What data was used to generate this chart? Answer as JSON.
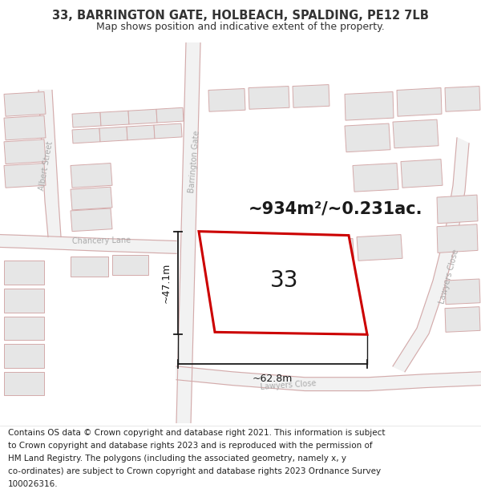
{
  "title_line1": "33, BARRINGTON GATE, HOLBEACH, SPALDING, PE12 7LB",
  "title_line2": "Map shows position and indicative extent of the property.",
  "footer_lines": [
    "Contains OS data © Crown copyright and database right 2021. This information is subject",
    "to Crown copyright and database rights 2023 and is reproduced with the permission of",
    "HM Land Registry. The polygons (including the associated geometry, namely x, y",
    "co-ordinates) are subject to Crown copyright and database rights 2023 Ordnance Survey",
    "100026316."
  ],
  "area_label": "~934m²/~0.231ac.",
  "number_label": "33",
  "dim_width": "~62.8m",
  "dim_height": "~47.1m",
  "street_barrington": "Barrington Gate",
  "street_albert": "Albert Street",
  "street_chancery": "Chancery Lane",
  "street_lawyers1": "Lawyers Close",
  "street_lawyers2": "Lawyers Closе",
  "map_bg": "#f7f7f7",
  "building_fill": "#e6e6e6",
  "building_edge": "#d4aaaa",
  "road_fill": "#f2f2f2",
  "road_edge": "#d4aaaa",
  "highlight_color": "#cc0000",
  "text_color": "#333333",
  "street_color": "#aaaaaa",
  "dim_color": "#1a1a1a",
  "title_fontsize": 10.5,
  "subtitle_fontsize": 9,
  "footer_fontsize": 7.5,
  "area_fontsize": 15,
  "number_fontsize": 20,
  "dim_fontsize": 9,
  "street_fontsize": 7
}
